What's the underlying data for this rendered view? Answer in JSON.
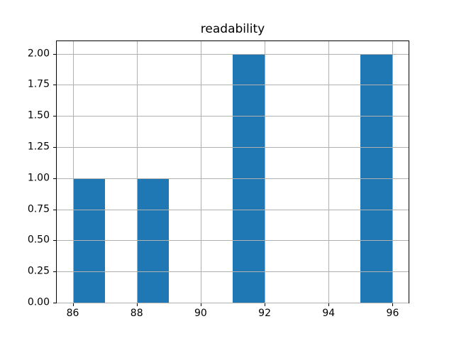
{
  "chart_data": {
    "type": "bar",
    "subtype": "histogram",
    "title": "readability",
    "xlabel": "",
    "ylabel": "",
    "bin_edges": [
      86,
      87,
      88,
      89,
      90,
      91,
      92,
      93,
      94,
      95,
      96
    ],
    "counts": [
      1,
      0,
      1,
      0,
      0,
      2,
      0,
      0,
      0,
      2
    ],
    "xlim": [
      85.5,
      96.5
    ],
    "ylim": [
      0,
      2.1
    ],
    "xticks": [
      {
        "value": 86,
        "label": "86"
      },
      {
        "value": 88,
        "label": "88"
      },
      {
        "value": 90,
        "label": "90"
      },
      {
        "value": 92,
        "label": "92"
      },
      {
        "value": 94,
        "label": "94"
      },
      {
        "value": 96,
        "label": "96"
      }
    ],
    "yticks": [
      {
        "value": 0.0,
        "label": "0.00"
      },
      {
        "value": 0.25,
        "label": "0.25"
      },
      {
        "value": 0.5,
        "label": "0.50"
      },
      {
        "value": 0.75,
        "label": "0.75"
      },
      {
        "value": 1.0,
        "label": "1.00"
      },
      {
        "value": 1.25,
        "label": "1.25"
      },
      {
        "value": 1.5,
        "label": "1.50"
      },
      {
        "value": 1.75,
        "label": "1.75"
      },
      {
        "value": 2.0,
        "label": "2.00"
      }
    ],
    "grid": true,
    "grid_above_bars": true,
    "legend": false,
    "colors": {
      "bar": "#1f77b4",
      "grid": "#b0b0b0",
      "spine": "#000000",
      "text": "#000000",
      "background": "#ffffff"
    }
  }
}
